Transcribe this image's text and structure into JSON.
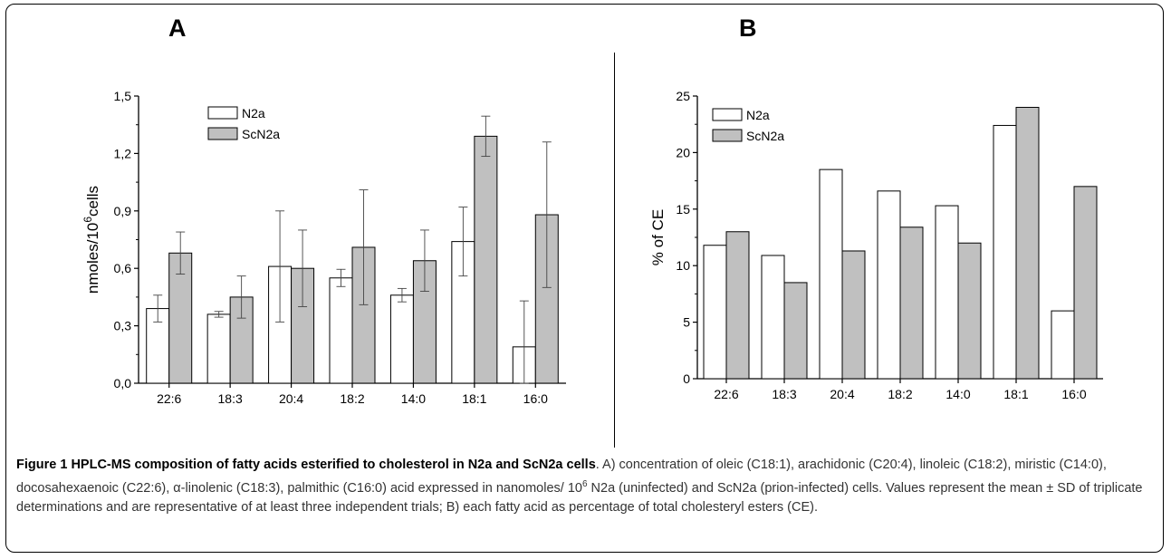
{
  "figure": {
    "number_label": "Figure 1",
    "title": "HPLC-MS composition of fatty acids esterified to cholesterol in N2a and ScN2a cells",
    "caption_body": ". A) concentration of oleic (C18:1), arachidonic (C20:4), linoleic (C18:2), miristic (C14:0), docosahexaenoic (C22:6), α-linolenic (C18:3), palmithic (C16:0) acid expressed in nanomoles/ 10",
    "caption_sup": "6",
    "caption_end": " N2a (uninfected) and ScN2a (prion-infected) cells. Values represent the mean ± SD of triplicate determinations and are representative of at least three independent trials; B) each fatty acid as percentage of total cholesteryl esters (CE)."
  },
  "chart_data": [
    {
      "panel": "A",
      "type": "bar",
      "ylabel_main": "nmoles/10",
      "ylabel_sup": "6",
      "ylabel_end": "cells",
      "ylim": [
        0,
        1.5
      ],
      "yticks": [
        0,
        0.3,
        0.6,
        0.9,
        1.2,
        1.5
      ],
      "ytick_labels": [
        "0,0",
        "0,3",
        "0,6",
        "0,9",
        "1,2",
        "1,5"
      ],
      "categories": [
        "22:6",
        "18:3",
        "20:4",
        "18:2",
        "14:0",
        "18:1",
        "16:0"
      ],
      "legend_position": "upper-left",
      "series": [
        {
          "name": "N2a",
          "color": "#ffffff",
          "values": [
            0.39,
            0.36,
            0.61,
            0.55,
            0.46,
            0.74,
            0.19
          ],
          "errors": [
            0.07,
            0.015,
            0.29,
            0.045,
            0.035,
            0.18,
            0.24
          ]
        },
        {
          "name": "ScN2a",
          "color": "#c0c0c0",
          "values": [
            0.68,
            0.45,
            0.6,
            0.71,
            0.64,
            1.29,
            0.88
          ],
          "errors": [
            0.11,
            0.11,
            0.2,
            0.3,
            0.16,
            0.105,
            0.38
          ]
        }
      ]
    },
    {
      "panel": "B",
      "type": "bar",
      "ylabel": "% of CE",
      "ylim": [
        0,
        25
      ],
      "yticks": [
        0,
        5,
        10,
        15,
        20,
        25
      ],
      "ytick_labels": [
        "0",
        "5",
        "10",
        "15",
        "20",
        "25"
      ],
      "categories": [
        "22:6",
        "18:3",
        "20:4",
        "18:2",
        "14:0",
        "18:1",
        "16:0"
      ],
      "legend_position": "upper-left",
      "series": [
        {
          "name": "N2a",
          "color": "#ffffff",
          "values": [
            11.8,
            10.9,
            18.5,
            16.6,
            15.3,
            22.4,
            6.0
          ]
        },
        {
          "name": "ScN2a",
          "color": "#c0c0c0",
          "values": [
            13.0,
            8.5,
            11.3,
            13.4,
            12.0,
            24.0,
            17.0
          ]
        }
      ]
    }
  ]
}
